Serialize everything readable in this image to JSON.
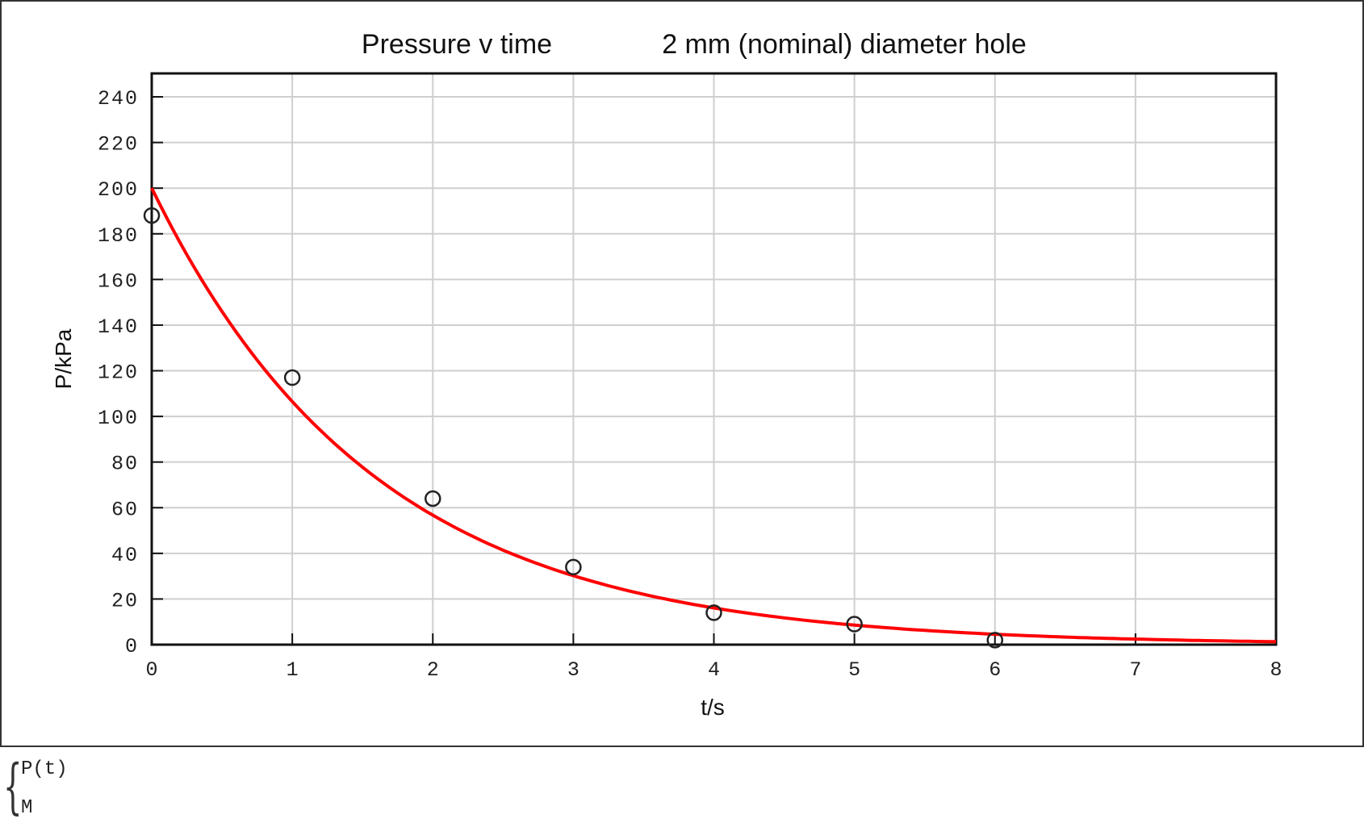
{
  "chart_data": {
    "type": "scatter",
    "title": "Pressure v time        2 mm (nominal) diameter hole",
    "title_parts": [
      "Pressure v time",
      "2 mm (nominal) diameter hole"
    ],
    "xlabel": "t/s",
    "ylabel": "P/kPa",
    "xlim": [
      0,
      8
    ],
    "ylim": [
      0,
      250
    ],
    "xticks": [
      0,
      1,
      2,
      3,
      4,
      5,
      6,
      7,
      8
    ],
    "yticks": [
      0,
      20,
      40,
      60,
      80,
      100,
      120,
      140,
      160,
      180,
      200,
      220,
      240
    ],
    "grid": true,
    "legend_position": "below-left",
    "series": [
      {
        "name": "P(t)",
        "kind": "line",
        "color": "#ff0000",
        "model": "P = 200 * exp(-0.63 t)",
        "x": [
          0,
          0.5,
          1,
          1.5,
          2,
          2.5,
          3,
          3.5,
          4,
          4.5,
          5,
          5.5,
          6,
          6.5,
          7,
          7.5,
          8
        ],
        "values": [
          200,
          146,
          106.5,
          77.6,
          56.7,
          41.4,
          30.2,
          22.0,
          16.1,
          11.7,
          8.6,
          6.3,
          4.6,
          3.3,
          2.4,
          1.8,
          1.3
        ]
      },
      {
        "name": "M",
        "kind": "scatter",
        "marker": "open-circle",
        "color": "#222222",
        "x": [
          0,
          1,
          2,
          3,
          4,
          5,
          6
        ],
        "values": [
          188,
          117,
          64,
          34,
          14,
          9,
          2
        ]
      }
    ]
  },
  "legend": {
    "items": [
      "P(t)",
      "M"
    ]
  }
}
